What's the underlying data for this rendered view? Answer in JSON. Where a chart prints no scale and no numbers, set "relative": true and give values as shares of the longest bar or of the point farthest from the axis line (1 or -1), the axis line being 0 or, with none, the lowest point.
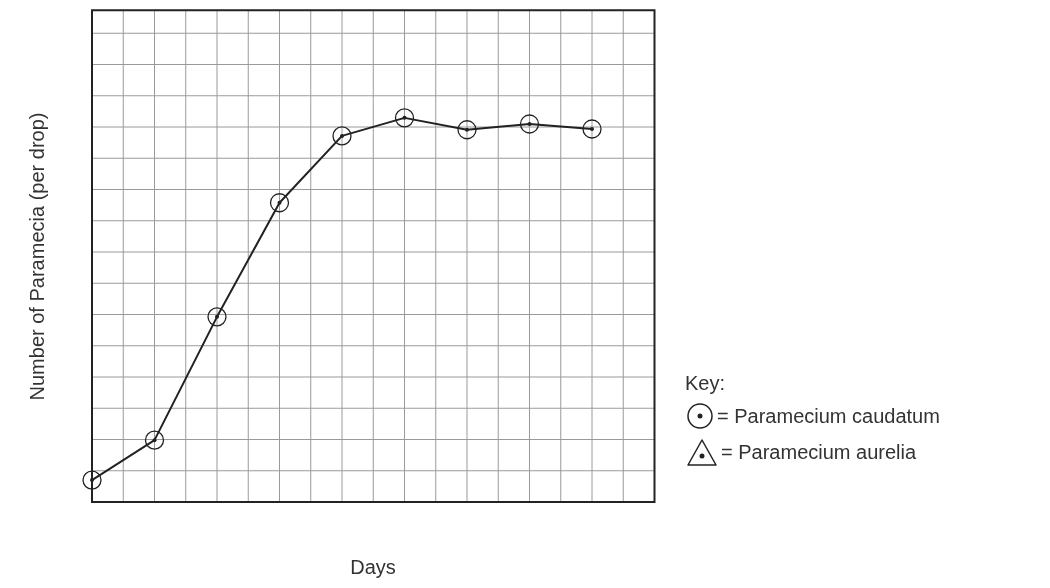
{
  "chart_data": {
    "type": "line",
    "xlabel": "Days",
    "ylabel": "Number of Paramecia (per drop)",
    "legend_title": "Key:",
    "relative": true,
    "grid": true,
    "legend": "right",
    "marker": "circle",
    "categories": [
      null,
      null,
      null,
      null,
      null,
      null,
      null,
      null,
      null
    ],
    "series": [
      {
        "name": "= Paramecium caudatum",
        "color": "#222222",
        "values": [
          0.057,
          0.161,
          0.482,
          0.779,
          0.953,
          1,
          0.969,
          0.984,
          0.971
        ]
      },
      {
        "name": "= Paramecium aurelia",
        "color": "#222222",
        "marker": "triangle",
        "values": [
          null,
          null,
          null,
          null,
          null,
          null,
          null,
          null,
          null
        ]
      }
    ]
  }
}
